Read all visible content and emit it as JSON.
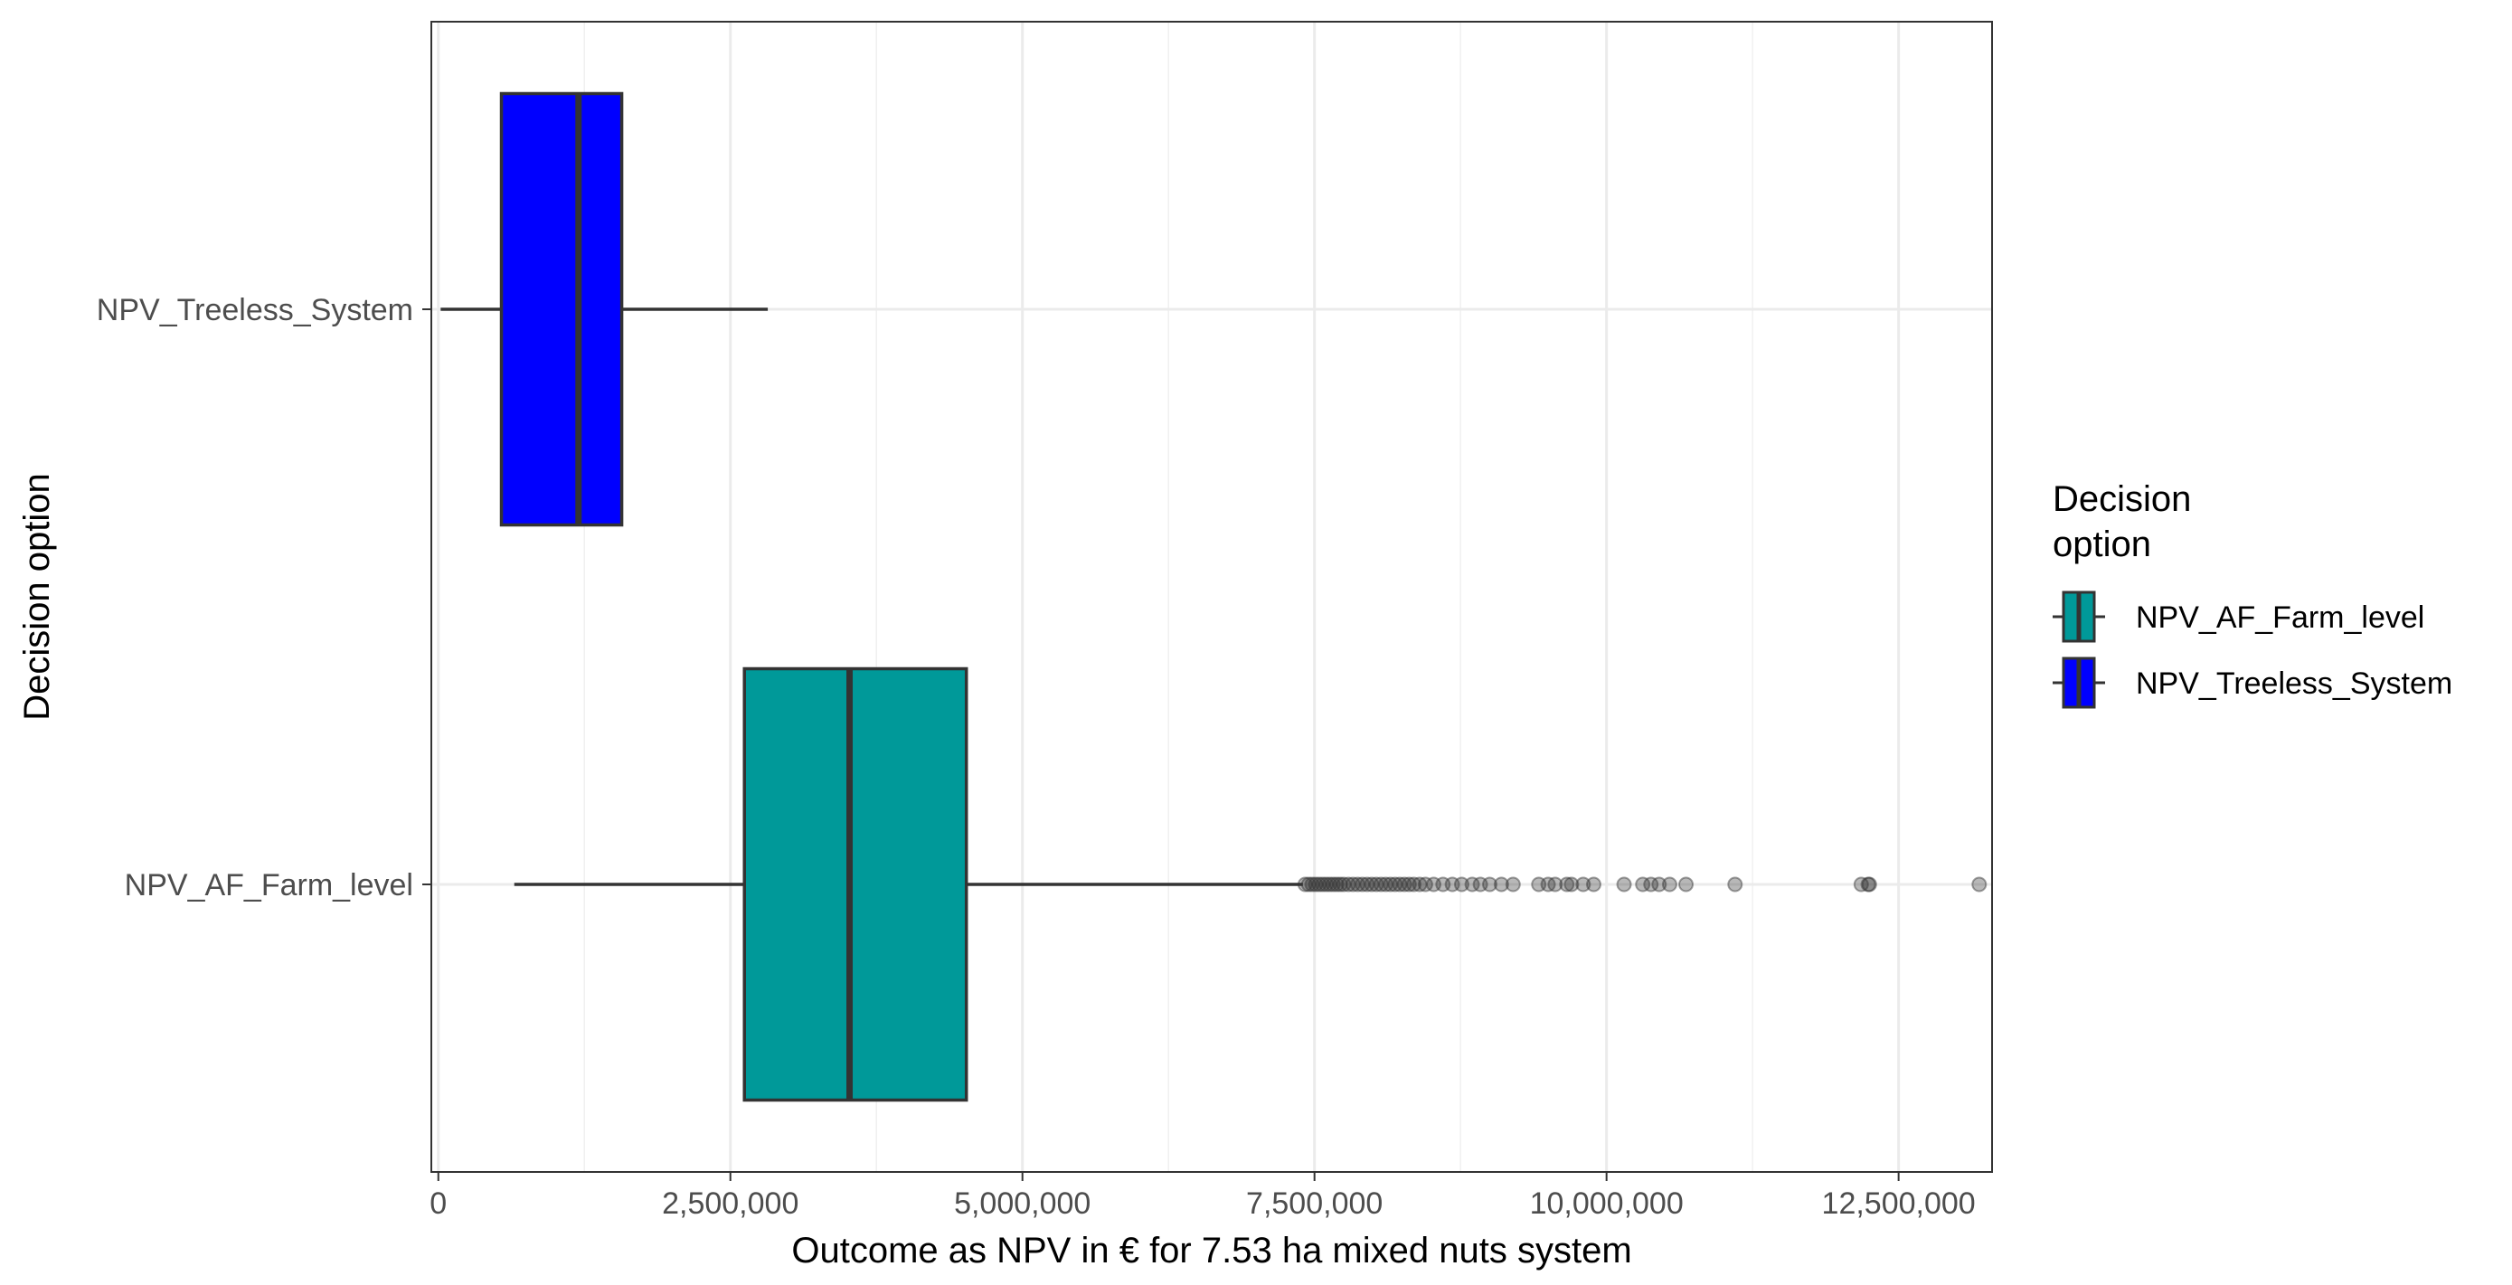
{
  "chart_data": {
    "type": "boxplot",
    "orientation": "horizontal",
    "title": "",
    "xlabel": "Outcome as NPV in € for 7.53 ha mixed nuts system",
    "ylabel": "Decision option",
    "xlim": [
      -60000,
      13300000
    ],
    "x_ticks": [
      0,
      2500000,
      5000000,
      7500000,
      10000000,
      12500000
    ],
    "x_tick_labels": [
      "0",
      "2,500,000",
      "5,000,000",
      "7,500,000",
      "10,000,000",
      "12,500,000"
    ],
    "categories": [
      "NPV_AF_Farm_level",
      "NPV_Treeless_System"
    ],
    "grid": true,
    "legend": {
      "title": "Decision\noption",
      "position": "right",
      "entries": [
        {
          "label": "NPV_AF_Farm_level",
          "color": "#009999"
        },
        {
          "label": "NPV_Treeless_System",
          "color": "#0000FF"
        }
      ]
    },
    "series": [
      {
        "name": "NPV_AF_Farm_level",
        "color": "#009999",
        "whisker_low": 650000,
        "q1": 2620000,
        "median": 3520000,
        "q3": 4520000,
        "whisker_high": 7400000,
        "outliers": [
          7420000,
          7450000,
          7480000,
          7510000,
          7540000,
          7570000,
          7600000,
          7630000,
          7660000,
          7690000,
          7720000,
          7750000,
          7790000,
          7830000,
          7870000,
          7910000,
          7950000,
          7990000,
          8030000,
          8070000,
          8110000,
          8150000,
          8190000,
          8230000,
          8270000,
          8310000,
          8350000,
          8400000,
          8450000,
          8520000,
          8600000,
          8680000,
          8760000,
          8850000,
          8920000,
          9000000,
          9100000,
          9200000,
          9420000,
          9500000,
          9560000,
          9660000,
          9700000,
          9800000,
          9890000,
          10150000,
          10310000,
          10380000,
          10450000,
          10540000,
          10680000,
          11100000,
          12180000,
          12240000,
          12250000,
          13190000
        ]
      },
      {
        "name": "NPV_Treeless_System",
        "color": "#0000FF",
        "whisker_low": 20000,
        "q1": 540000,
        "median": 1200000,
        "q3": 1570000,
        "whisker_high": 2820000,
        "outliers": []
      }
    ]
  }
}
